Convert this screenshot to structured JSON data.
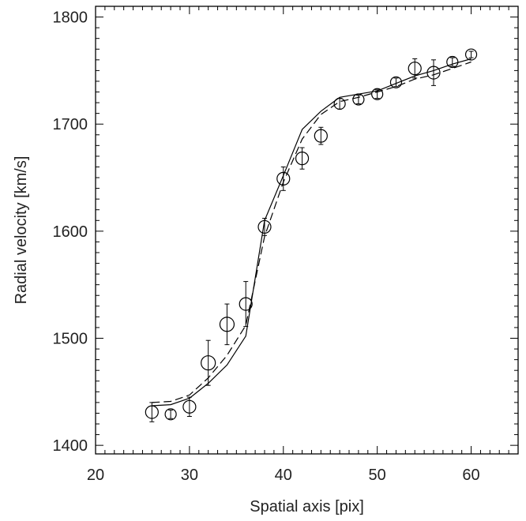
{
  "chart_data": {
    "type": "scatter",
    "xlabel": "Spatial axis [pix]",
    "ylabel": "Radial velocity [km/s]",
    "xlim": [
      20,
      65
    ],
    "ylim": [
      1392,
      1810
    ],
    "x_ticks": [
      20,
      30,
      40,
      50,
      60
    ],
    "y_ticks": [
      1400,
      1500,
      1600,
      1700,
      1800
    ],
    "x_minor_step": 1,
    "y_minor_step": 10,
    "observations": [
      {
        "x": 26,
        "y": 1431,
        "err": 9,
        "r": 8
      },
      {
        "x": 28,
        "y": 1429,
        "err": 4,
        "r": 7
      },
      {
        "x": 30,
        "y": 1436,
        "err": 9,
        "r": 8
      },
      {
        "x": 32,
        "y": 1477,
        "err": 21,
        "r": 9
      },
      {
        "x": 34,
        "y": 1513,
        "err": 19,
        "r": 9
      },
      {
        "x": 36,
        "y": 1532,
        "err": 21,
        "r": 8
      },
      {
        "x": 38,
        "y": 1604,
        "err": 8,
        "r": 8
      },
      {
        "x": 40,
        "y": 1649,
        "err": 11,
        "r": 8
      },
      {
        "x": 42,
        "y": 1668,
        "err": 10,
        "r": 8
      },
      {
        "x": 44,
        "y": 1689,
        "err": 8,
        "r": 8
      },
      {
        "x": 46,
        "y": 1719,
        "err": 5,
        "r": 7
      },
      {
        "x": 48,
        "y": 1723,
        "err": 4,
        "r": 7
      },
      {
        "x": 50,
        "y": 1728,
        "err": 4,
        "r": 7
      },
      {
        "x": 52,
        "y": 1739,
        "err": 4,
        "r": 7
      },
      {
        "x": 54,
        "y": 1752,
        "err": 9,
        "r": 8
      },
      {
        "x": 56,
        "y": 1748,
        "err": 12,
        "r": 8
      },
      {
        "x": 58,
        "y": 1758,
        "err": 4,
        "r": 7
      },
      {
        "x": 60,
        "y": 1765,
        "err": 3,
        "r": 7
      }
    ],
    "series": [
      {
        "style": "solid",
        "x": [
          26,
          28,
          30,
          32,
          34,
          36,
          38,
          40,
          42,
          44,
          46,
          48,
          50,
          52,
          54,
          56,
          58,
          60
        ],
        "y": [
          1437,
          1438,
          1444,
          1458,
          1475,
          1502,
          1610,
          1652,
          1695,
          1712,
          1725,
          1728,
          1731,
          1738,
          1745,
          1750,
          1756,
          1761
        ]
      },
      {
        "style": "dashed",
        "x": [
          26,
          28,
          30,
          32,
          34,
          36,
          38,
          40,
          42,
          44,
          46,
          48,
          50,
          52,
          54,
          56,
          58,
          60
        ],
        "y": [
          1440,
          1441,
          1447,
          1463,
          1484,
          1512,
          1595,
          1646,
          1686,
          1709,
          1721,
          1725,
          1730,
          1735,
          1742,
          1746,
          1752,
          1758
        ]
      }
    ]
  }
}
